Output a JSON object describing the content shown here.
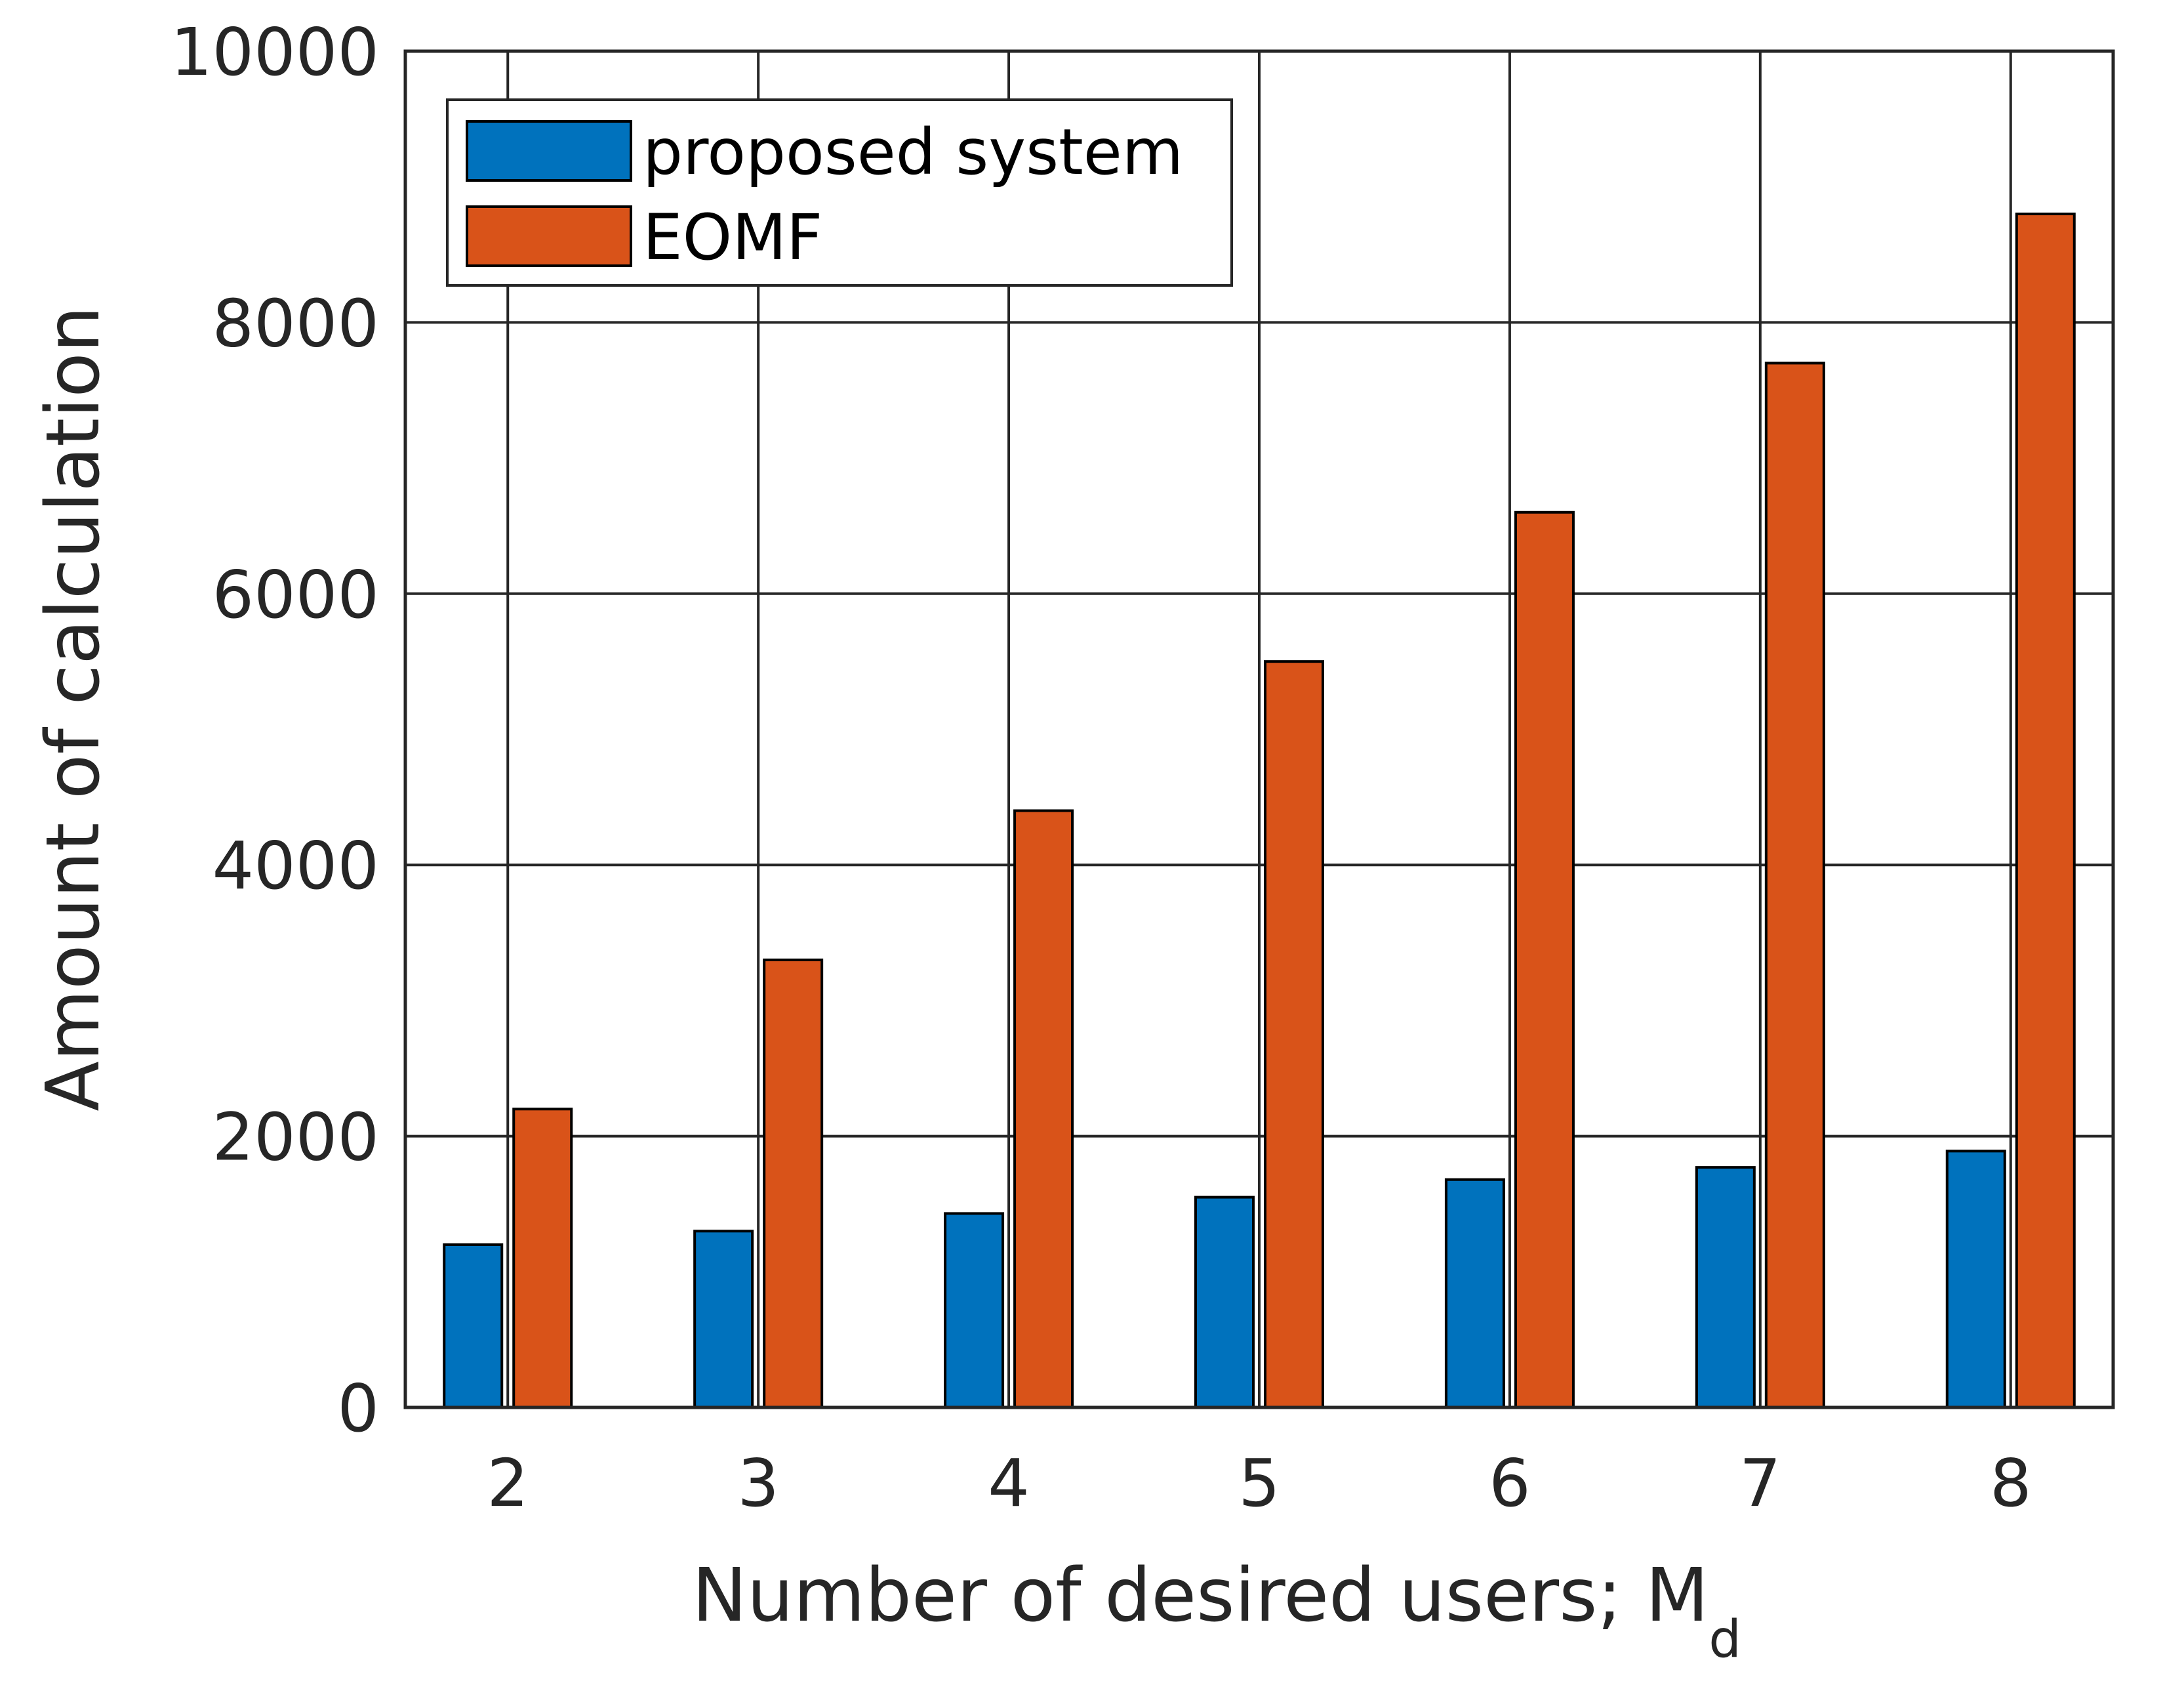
{
  "chart_data": {
    "type": "bar",
    "title": "",
    "xlabel": "Number of desired users; M",
    "xlabel_subscript": "d",
    "ylabel": "Amount of calculation",
    "categories": [
      "2",
      "3",
      "4",
      "5",
      "6",
      "7",
      "8"
    ],
    "ylim": [
      0,
      10000
    ],
    "yticks": [
      "0",
      "2000",
      "4000",
      "6000",
      "8000",
      "10000"
    ],
    "grid": true,
    "legend_position": "top-left",
    "series": [
      {
        "name": "proposed system",
        "color": "#0072BD",
        "values": [
          1200,
          1300,
          1430,
          1550,
          1680,
          1770,
          1890
        ]
      },
      {
        "name": "EOMF",
        "color": "#D95319",
        "values": [
          2200,
          3300,
          4400,
          5500,
          6600,
          7700,
          8800
        ]
      }
    ]
  }
}
